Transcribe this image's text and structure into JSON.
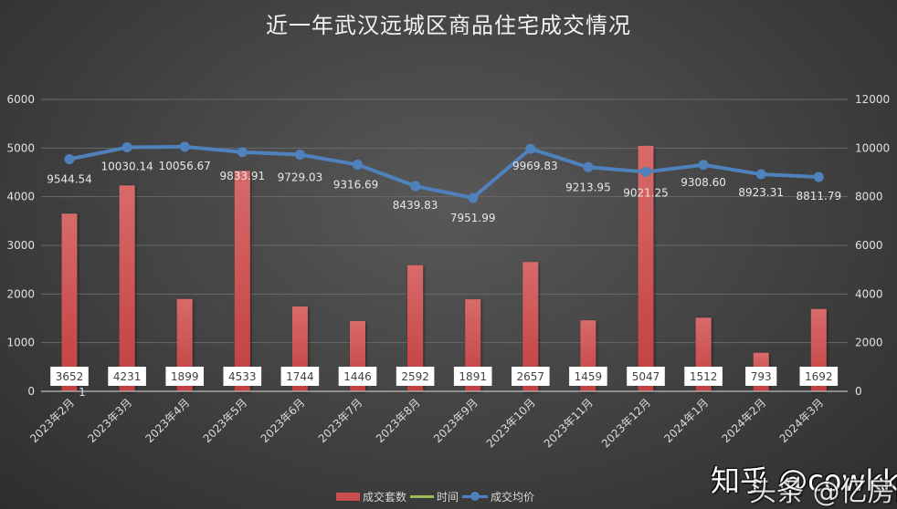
{
  "title": "近一年武汉远城区商品住宅成交情况",
  "legend": {
    "items": [
      {
        "label": "成交套数",
        "type": "bar",
        "color": "#c94f4f"
      },
      {
        "label": "时间",
        "type": "line",
        "color": "#9bbb59"
      },
      {
        "label": "成交均价",
        "type": "line-marker",
        "color": "#4f81bd"
      }
    ]
  },
  "watermark": {
    "line1": "知乎 @cowkk",
    "line2": "头条 @亿房网"
  },
  "stray_label": "1",
  "chart_data": {
    "type": "bar+line",
    "title": "近一年武汉远城区商品住宅成交情况",
    "categories": [
      "2023年2月",
      "2023年3月",
      "2023年4月",
      "2023年5月",
      "2023年6月",
      "2023年7月",
      "2023年8月",
      "2023年9月",
      "2023年10月",
      "2023年11月",
      "2023年12月",
      "2024年1月",
      "2024年2月",
      "2024年3月"
    ],
    "series": [
      {
        "name": "成交套数",
        "type": "bar",
        "axis": "left",
        "color": "#c94f4f",
        "values": [
          3652,
          4231,
          1899,
          4533,
          1744,
          1446,
          2592,
          1891,
          2657,
          1459,
          5047,
          1512,
          793,
          1692
        ]
      },
      {
        "name": "时间",
        "type": "line",
        "axis": "left",
        "color": "#9bbb59",
        "values": []
      },
      {
        "name": "成交均价",
        "type": "line",
        "axis": "right",
        "color": "#4f81bd",
        "values": [
          9544.54,
          10030.14,
          10056.67,
          9833.91,
          9729.03,
          9316.69,
          8439.83,
          7951.99,
          9969.83,
          9213.95,
          9021.25,
          9308.6,
          8923.31,
          8811.79
        ],
        "labels": [
          "9544.54",
          "10030.14",
          "10056.67",
          "9833.91",
          "9729.03",
          "9316.69",
          "8439.83",
          "7951.99",
          "9969.83",
          "9213.95",
          "9021.25",
          "9308.60",
          "8923.31",
          "8811.79"
        ]
      }
    ],
    "left_axis": {
      "ylim": [
        0,
        6000
      ],
      "ticks": [
        "0",
        "1000",
        "2000",
        "3000",
        "4000",
        "5000",
        "6000"
      ]
    },
    "right_axis": {
      "ylim": [
        0,
        12000
      ],
      "ticks": [
        "0",
        "2000",
        "4000",
        "6000",
        "8000",
        "10000",
        "12000"
      ]
    },
    "xlabel": "",
    "ylabel": "",
    "grid": true,
    "legend_position": "bottom"
  }
}
